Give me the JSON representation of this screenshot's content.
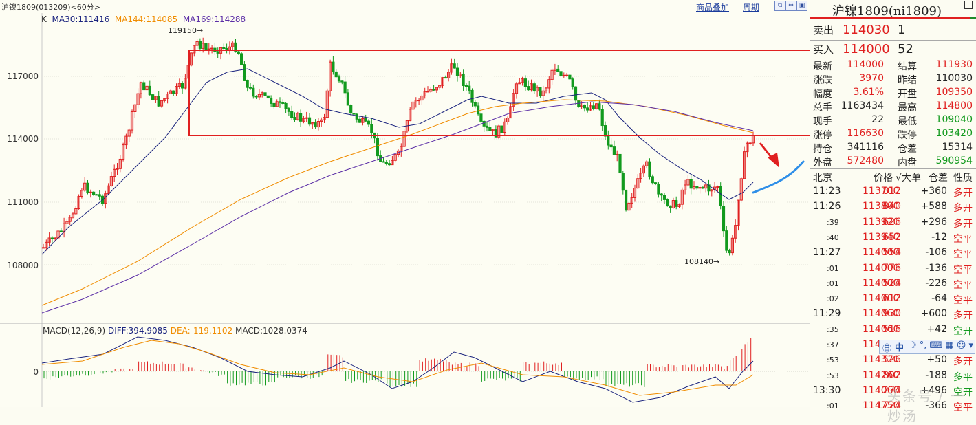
{
  "topbar": {
    "symbol": "沪镍1809(013209)<60分>",
    "link_overlay": "商品叠加",
    "link_period": "周期"
  },
  "legend": {
    "k": "K",
    "ma30": "MA30:111416",
    "ma144": "MA144:114085",
    "ma169": "MA169:114288"
  },
  "yaxis": [
    "117000",
    "114000",
    "111000",
    "108000",
    "0"
  ],
  "annotations": {
    "high": "119150",
    "low": "108140"
  },
  "macd_legend": {
    "title": "MACD(12,26,9)",
    "diff": "DIFF:394.9085",
    "dea": "DEA:-119.1102",
    "macd": "MACD:1028.0374"
  },
  "colors": {
    "up": "#e02020",
    "down": "#129a1e",
    "ma30": "#1a237e",
    "ma144": "#f08c00",
    "ma169": "#5b2ea6",
    "box": "#e02020",
    "projection": "#2f8fe8"
  },
  "panel": {
    "title": "沪镍1809(ni1809)",
    "sell": {
      "label": "卖出",
      "price": "114030",
      "vol": "1"
    },
    "buy": {
      "label": "买入",
      "price": "114000",
      "vol": "52"
    },
    "quotes": [
      {
        "k1": "最新",
        "v1": "114000",
        "c1": "red",
        "k2": "结算",
        "v2": "111930",
        "c2": "red"
      },
      {
        "k1": "涨跌",
        "v1": "3970",
        "c1": "red",
        "k2": "昨结",
        "v2": "110030",
        "c2": "black"
      },
      {
        "k1": "幅度",
        "v1": "3.61%",
        "c1": "red",
        "k2": "开盘",
        "v2": "109350",
        "c2": "red"
      },
      {
        "k1": "总手",
        "v1": "1163434",
        "c1": "black",
        "k2": "最高",
        "v2": "114800",
        "c2": "red"
      },
      {
        "k1": "现手",
        "v1": "22",
        "c1": "black",
        "k2": "最低",
        "v2": "109040",
        "c2": "green"
      },
      {
        "k1": "涨停",
        "v1": "116630",
        "c1": "red",
        "k2": "跌停",
        "v2": "103420",
        "c2": "green"
      },
      {
        "k1": "持仓",
        "v1": "341116",
        "c1": "black",
        "k2": "仓差",
        "v2": "15314",
        "c2": "black"
      },
      {
        "k1": "外盘",
        "v1": "572480",
        "c1": "red",
        "k2": "内盘",
        "v2": "590954",
        "c2": "green"
      }
    ],
    "ticks_header": {
      "time": "北京",
      "price": "价格",
      "vol": "√大单",
      "diff": "仓差",
      "nature": "性质"
    },
    "ticks": [
      {
        "t": "11:23",
        "p": "113700",
        "v": "812",
        "d": "+360",
        "n": "多开",
        "nc": "red"
      },
      {
        "t": "11:26",
        "p": "113800",
        "v": "840",
        "d": "+588",
        "n": "多开",
        "nc": "red"
      },
      {
        "t": ":39",
        "p": "113920",
        "v": "626",
        "d": "+296",
        "n": "多开",
        "nc": "red"
      },
      {
        "t": ":40",
        "p": "113940",
        "v": "652",
        "d": "-12",
        "n": "空平",
        "nc": "red"
      },
      {
        "t": "11:27",
        "p": "114000",
        "v": "554",
        "d": "-106",
        "n": "空平",
        "nc": "red"
      },
      {
        "t": ":01",
        "p": "114000",
        "v": "776",
        "d": "-136",
        "n": "空平",
        "nc": "red"
      },
      {
        "t": ":01",
        "p": "114000",
        "v": "524",
        "d": "-226",
        "n": "空平",
        "nc": "red"
      },
      {
        "t": ":02",
        "p": "114000",
        "v": "612",
        "d": "-64",
        "n": "空平",
        "nc": "red"
      },
      {
        "t": "11:29",
        "p": "114060",
        "v": "930",
        "d": "+600",
        "n": "多开",
        "nc": "red"
      },
      {
        "t": ":35",
        "p": "114060",
        "v": "516",
        "d": "+42",
        "n": "空开",
        "nc": "green"
      },
      {
        "t": ":37",
        "p": "11416",
        "v": "",
        "d": "",
        "n": "",
        "nc": "red"
      },
      {
        "t": ":53",
        "p": "114320",
        "v": "526",
        "d": "+50",
        "n": "多开",
        "nc": "red"
      },
      {
        "t": ":53",
        "p": "114260",
        "v": "802",
        "d": "-188",
        "n": "多平",
        "nc": "green"
      },
      {
        "t": "13:30",
        "p": "114060",
        "v": "274",
        "d": "+496",
        "n": "空开",
        "nc": "green"
      },
      {
        "t": ":01",
        "p": "114750",
        "v": "1724",
        "d": "-366",
        "n": "空平",
        "nc": "red"
      }
    ]
  },
  "ime": "中",
  "watermark": "头条号 / 一炒汤"
}
